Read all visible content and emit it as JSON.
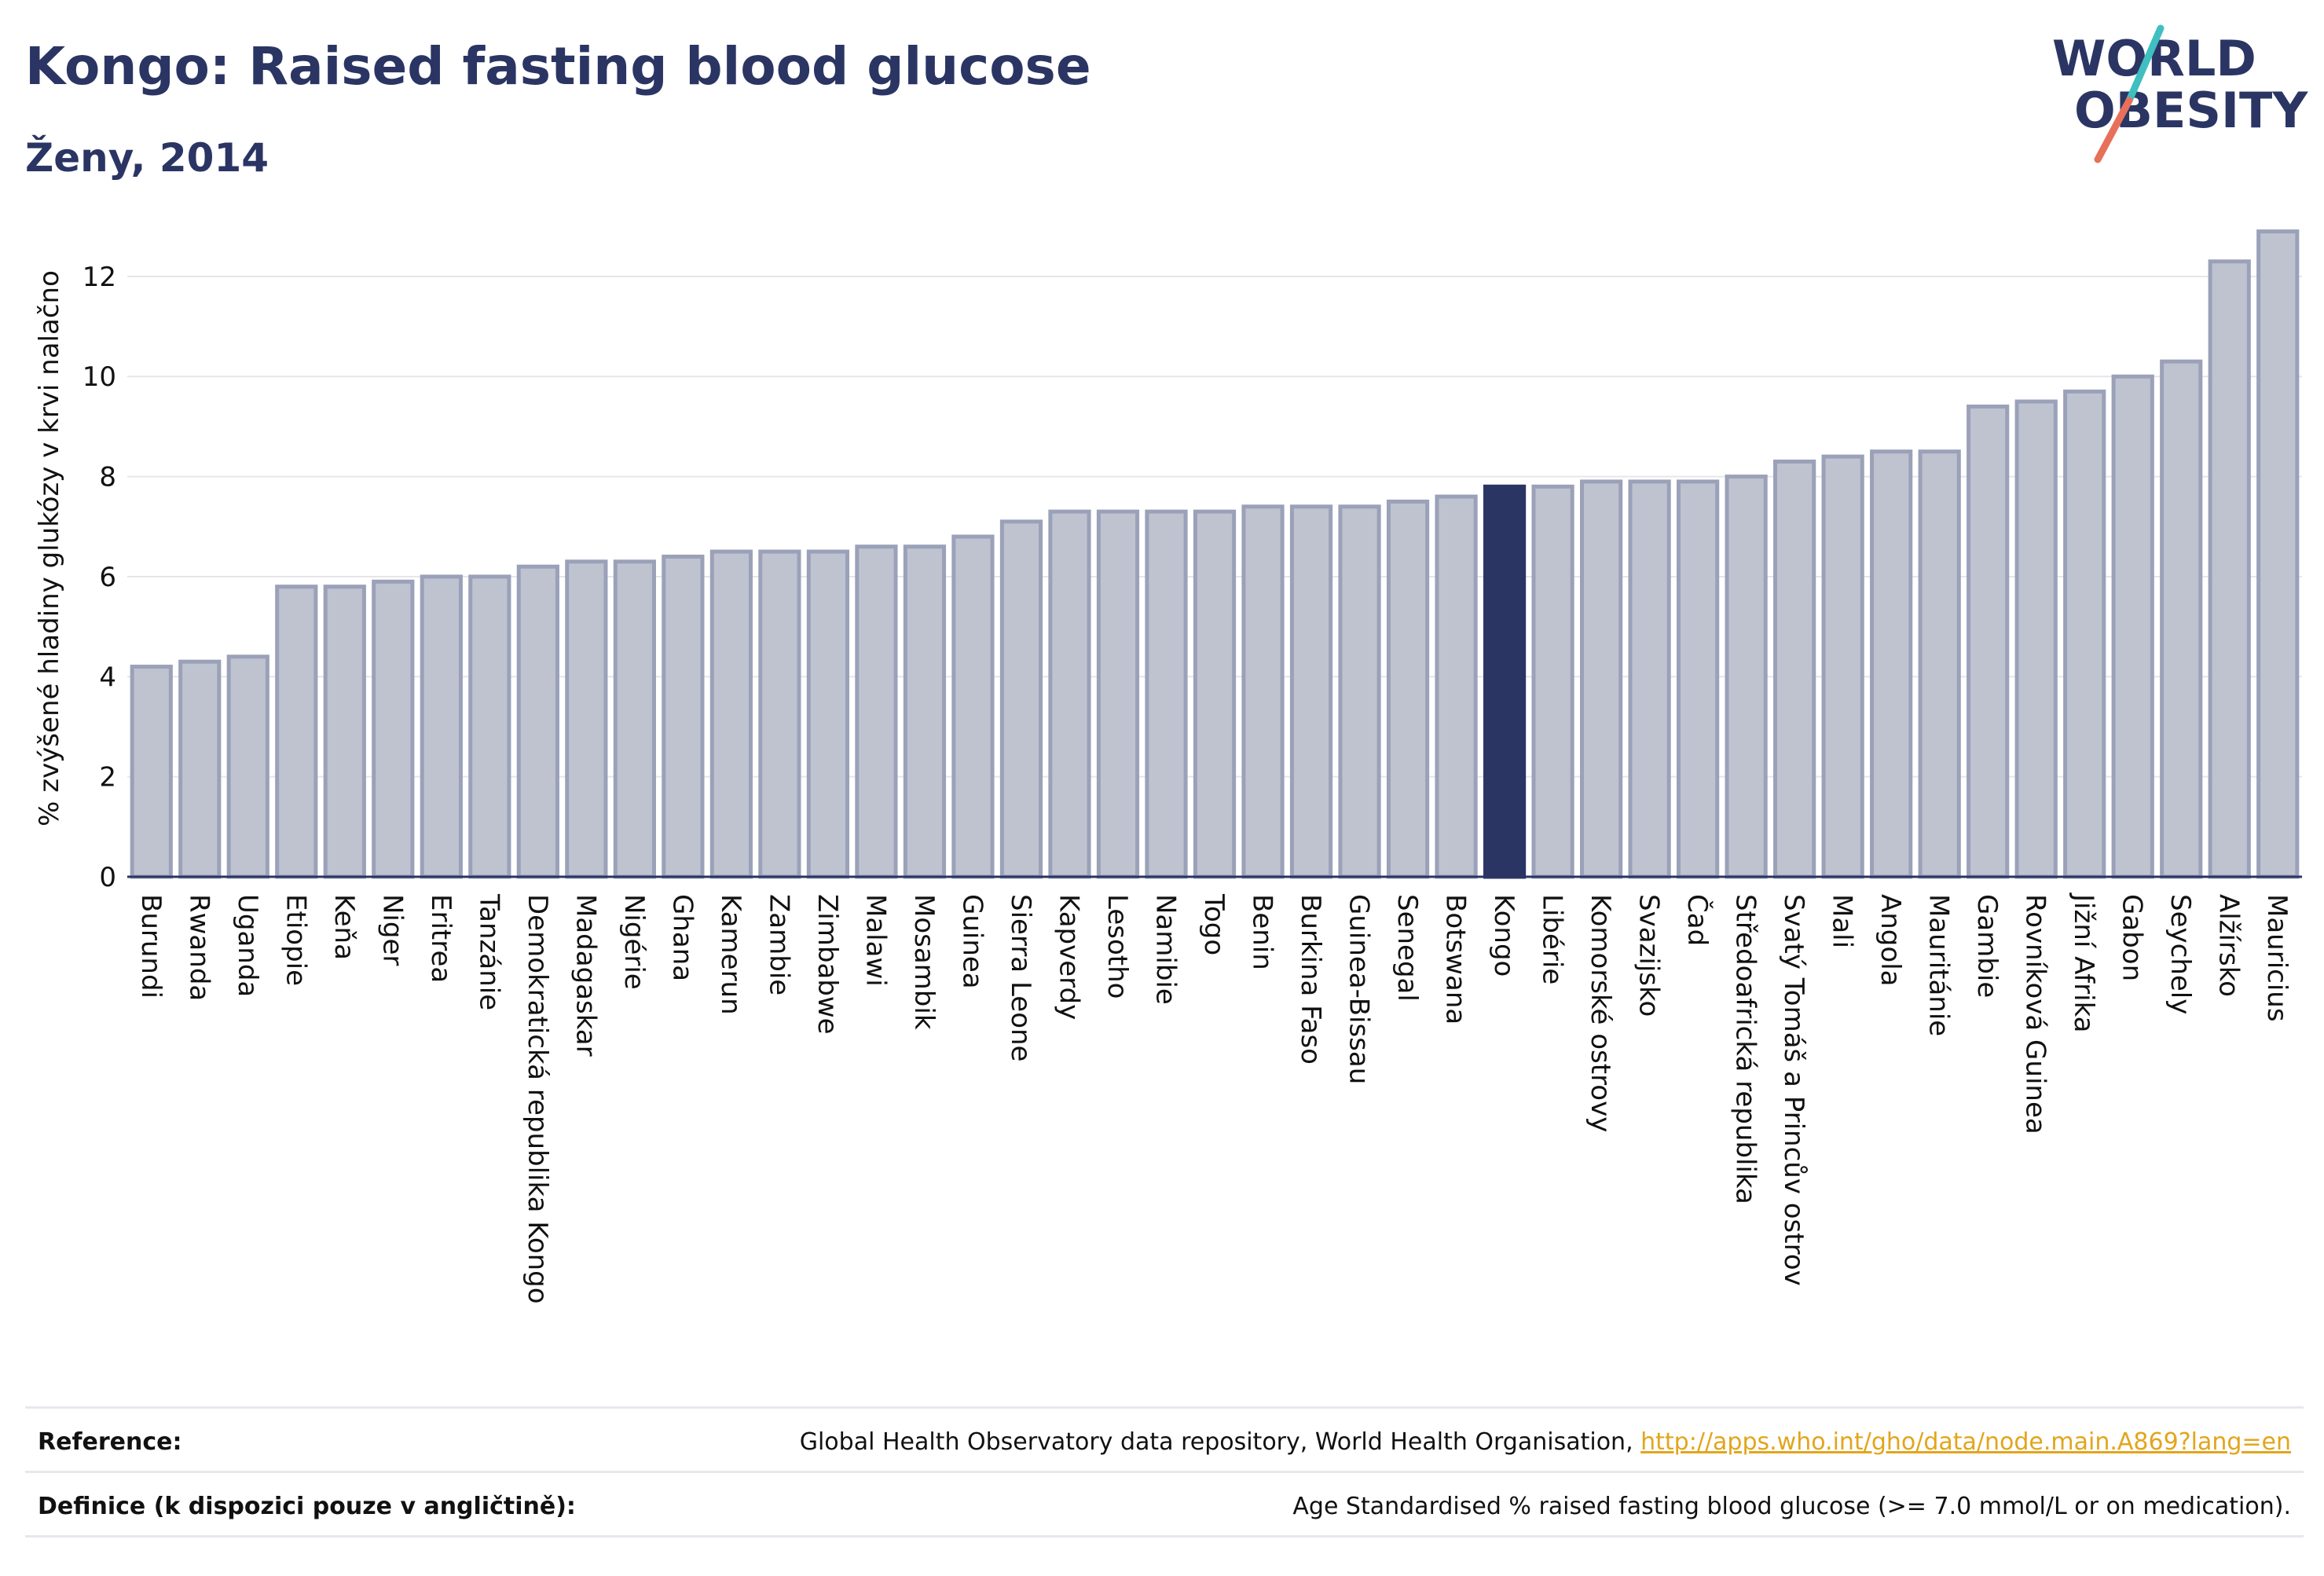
{
  "header": {
    "title": "Kongo: Raised fasting blood glucose",
    "subtitle": "Ženy, 2014"
  },
  "logo": {
    "line1": "WORLD",
    "line2": "OBESITY",
    "colors": {
      "text": "#2b3563",
      "slash_top": "#3fbfbf",
      "slash_bottom": "#e8705a"
    }
  },
  "chart_data": {
    "type": "bar",
    "title": "Kongo: Raised fasting blood glucose",
    "subtitle": "Ženy, 2014",
    "ylabel": "% zvýšené hladiny glukózy v krvi nalačno",
    "xlabel": "",
    "ylim": [
      0,
      13.6
    ],
    "yticks": [
      0,
      2,
      4,
      6,
      8,
      10,
      12
    ],
    "grid": true,
    "highlight": "Kongo",
    "colors": {
      "bar": "#bfc3d0",
      "bar_edge": "#9aa1b8",
      "highlight": "#2b3563",
      "grid": "#e6e6ea"
    },
    "categories": [
      "Burundi",
      "Rwanda",
      "Uganda",
      "Etiopie",
      "Keňa",
      "Niger",
      "Eritrea",
      "Tanzánie",
      "Demokratická republika Kongo",
      "Madagaskar",
      "Nigérie",
      "Ghana",
      "Kamerun",
      "Zambie",
      "Zimbabwe",
      "Malawi",
      "Mosambik",
      "Guinea",
      "Sierra Leone",
      "Kapverdy",
      "Lesotho",
      "Namibie",
      "Togo",
      "Benin",
      "Burkina Faso",
      "Guinea-Bissau",
      "Senegal",
      "Botswana",
      "Kongo",
      "Libérie",
      "Komorské ostrovy",
      "Svazijsko",
      "Čad",
      "Středoafrická republika",
      "Svatý Tomáš a Princův ostrov",
      "Mali",
      "Angola",
      "Mauritánie",
      "Gambie",
      "Rovníková Guinea",
      "Jižní Afrika",
      "Gabon",
      "Seychely",
      "Alžírsko",
      "Mauricius"
    ],
    "values": [
      4.2,
      4.3,
      4.4,
      5.8,
      5.8,
      5.9,
      6.0,
      6.0,
      6.2,
      6.3,
      6.3,
      6.4,
      6.5,
      6.5,
      6.5,
      6.6,
      6.6,
      6.8,
      7.1,
      7.3,
      7.3,
      7.3,
      7.3,
      7.4,
      7.4,
      7.4,
      7.5,
      7.6,
      7.8,
      7.8,
      7.9,
      7.9,
      7.9,
      8.0,
      8.3,
      8.4,
      8.5,
      8.5,
      9.4,
      9.5,
      9.7,
      10.0,
      10.3,
      12.3,
      12.9
    ]
  },
  "footer": {
    "reference_label": "Reference:",
    "reference_text": "Global Health Observatory data repository, World Health Organisation, ",
    "reference_link": "http://apps.who.int/gho/data/node.main.A869?lang=en",
    "definition_label": "Definice (k dispozici pouze v angličtině):",
    "definition_text": "Age Standardised % raised fasting blood glucose (>= 7.0 mmol/L or on medication)."
  }
}
